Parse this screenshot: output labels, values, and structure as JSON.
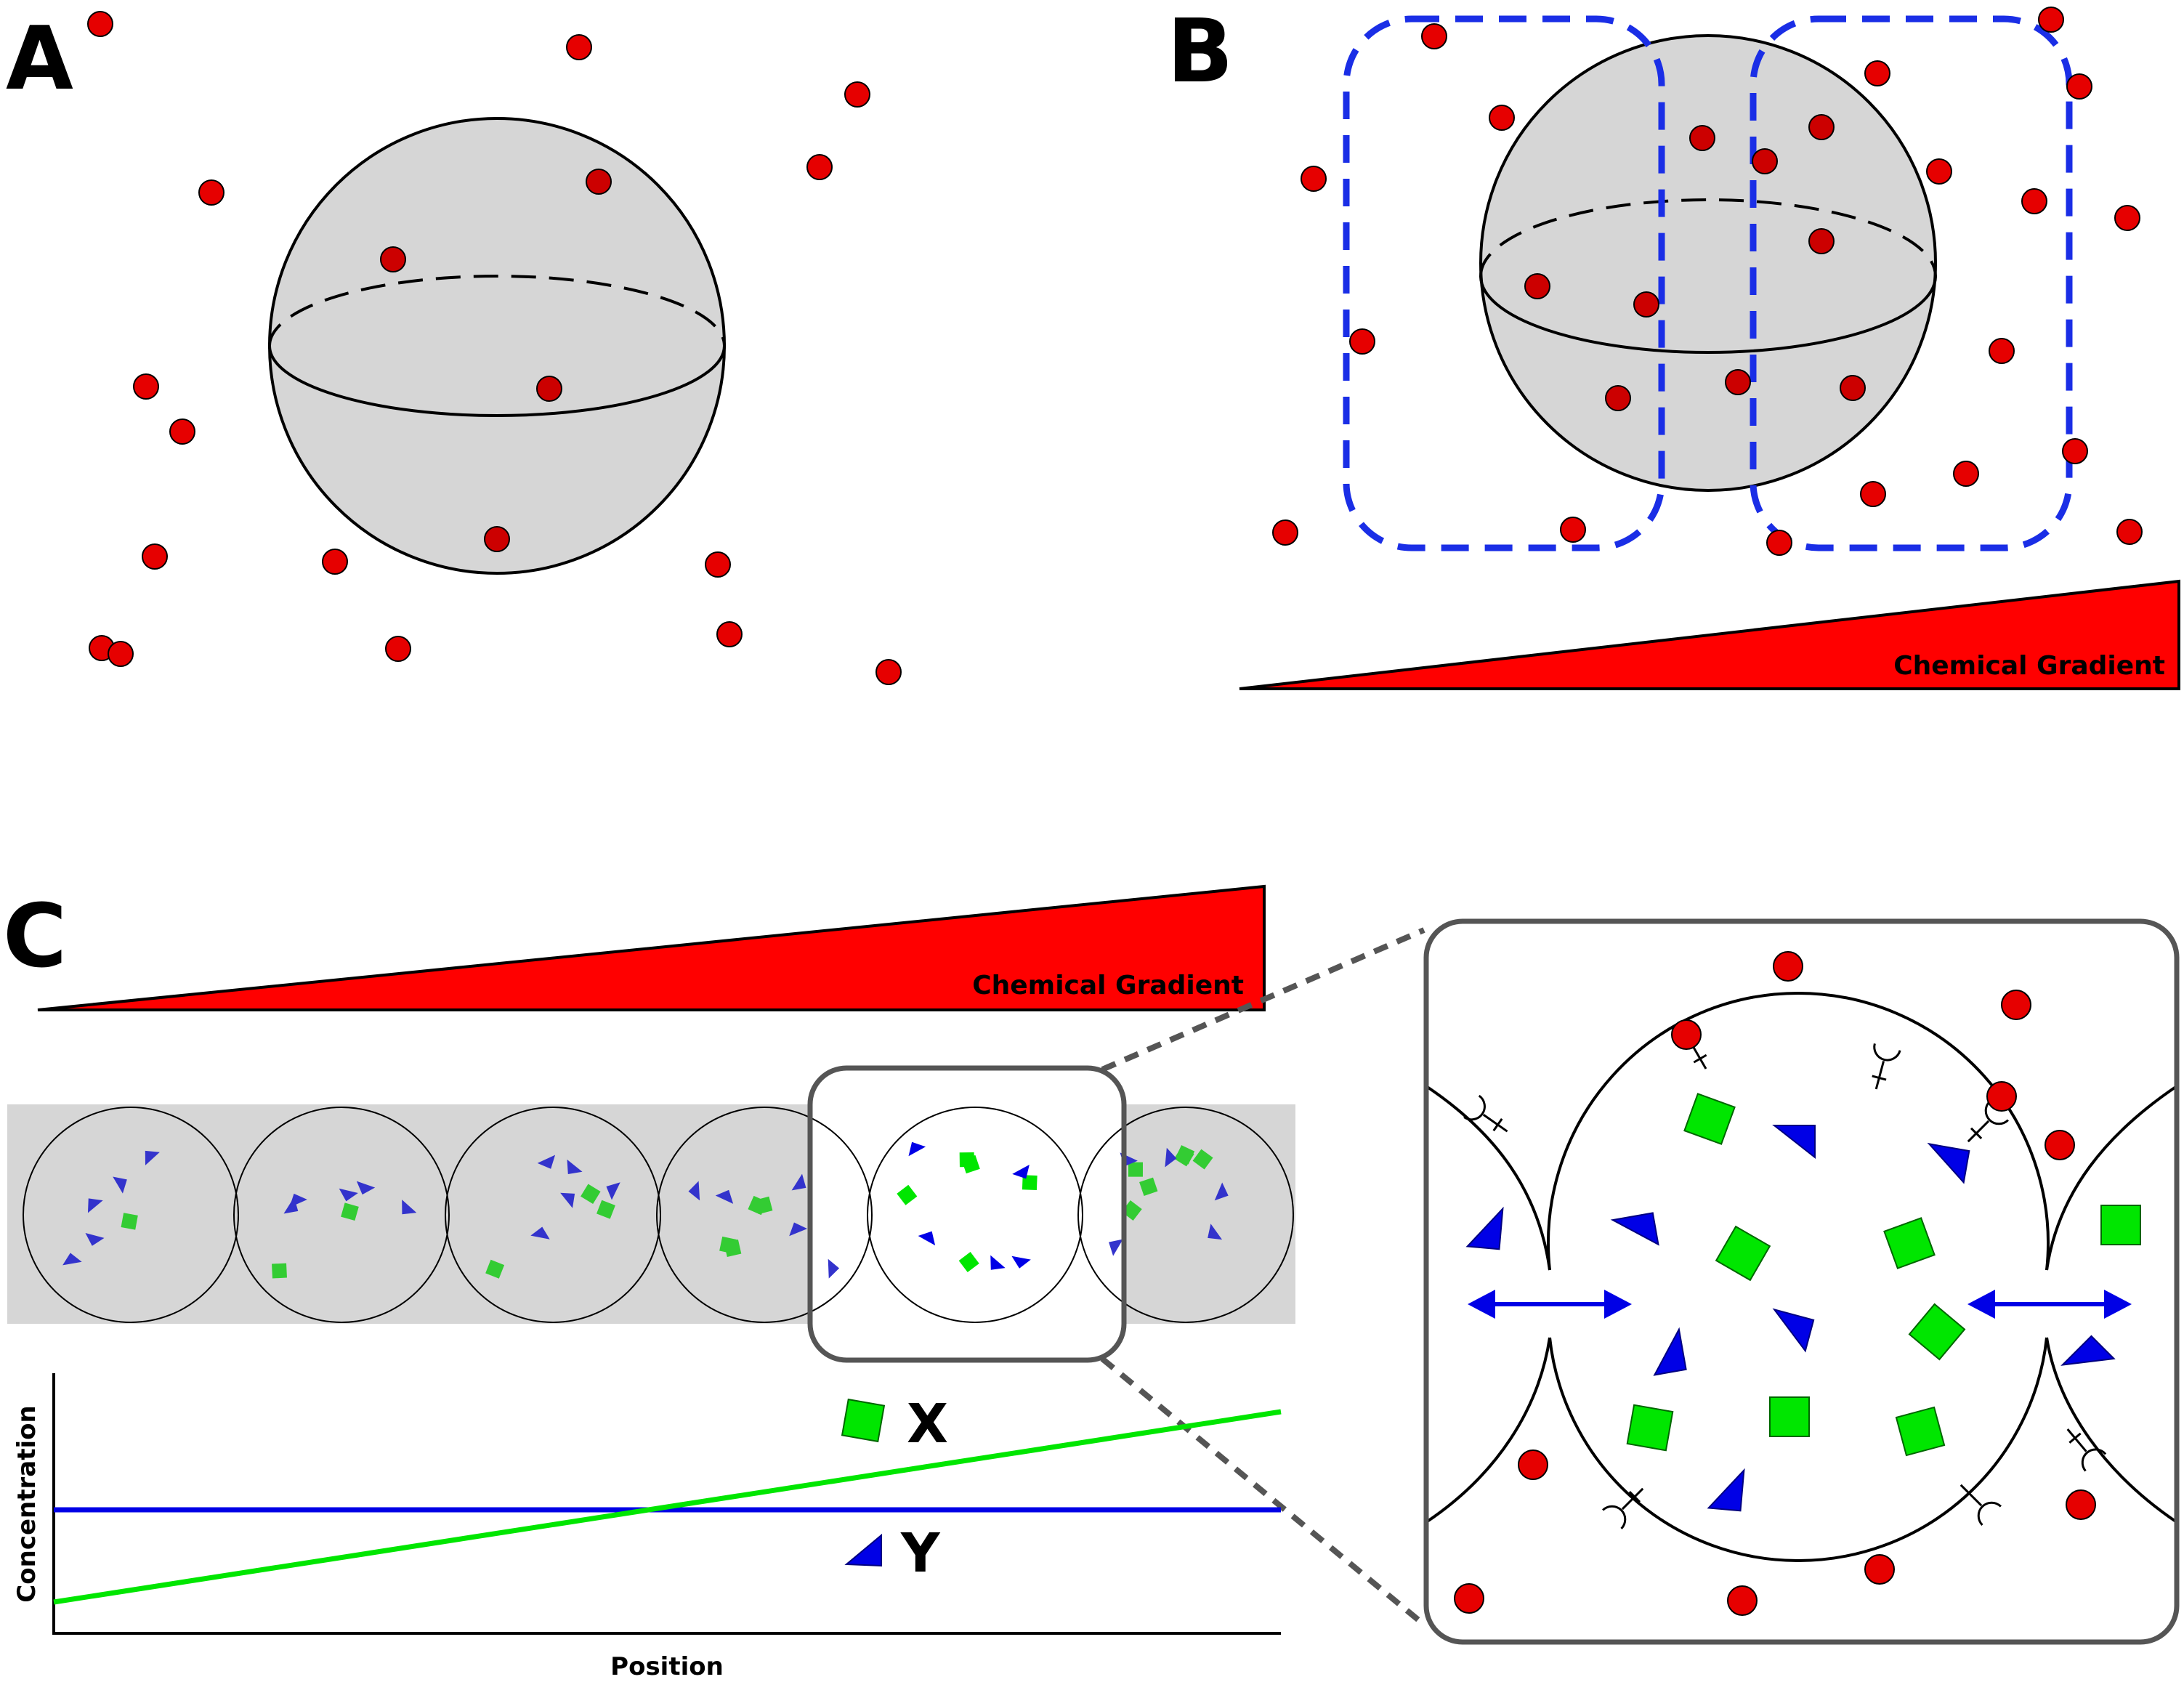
{
  "panels": {
    "a": {
      "letter": "A"
    },
    "b": {
      "letter": "B",
      "gradient_label": "Chemical Gradient"
    },
    "c": {
      "letter": "C",
      "gradient_label": "Chemical Gradient"
    }
  },
  "plot": {
    "xlabel": "Position",
    "ylabel": "Concentration"
  },
  "legend": {
    "x_label": "X",
    "y_label": "Y"
  },
  "colors": {
    "ligand": "#e60000",
    "species_x": "#00e600",
    "species_y": "#0000e6",
    "dashed_boundary": "#1a2ee6",
    "cell_fill": "#d6d6d6",
    "gradient": "#ff0000",
    "zoom_frame": "#555555"
  },
  "icons": [
    "ligand-dot",
    "receptor-icon",
    "exchange-arrow-icon"
  ],
  "chart_data": {
    "type": "line",
    "xlabel": "Position",
    "ylabel": "Concentration",
    "x": [
      0,
      1
    ],
    "series": [
      {
        "name": "X",
        "values": [
          0.1,
          0.85
        ]
      },
      {
        "name": "Y",
        "values": [
          0.47,
          0.47
        ]
      }
    ],
    "ylim": [
      0,
      1
    ],
    "grid": false
  }
}
